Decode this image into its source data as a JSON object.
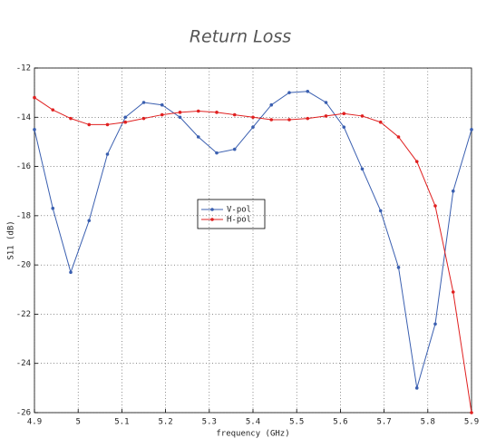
{
  "chart_data": {
    "type": "line",
    "title": "Return Loss",
    "xlabel": "frequency (GHz)",
    "ylabel": "S11 (dB)",
    "x": [
      4.9,
      4.942,
      4.983,
      5.025,
      5.067,
      5.108,
      5.15,
      5.192,
      5.233,
      5.275,
      5.317,
      5.358,
      5.4,
      5.442,
      5.483,
      5.525,
      5.567,
      5.608,
      5.65,
      5.692,
      5.733,
      5.775,
      5.817,
      5.858,
      5.9
    ],
    "series": [
      {
        "name": "V-pol",
        "color": "#3a5fb0",
        "values": [
          -14.5,
          -17.7,
          -20.3,
          -18.2,
          -15.5,
          -14.0,
          -13.4,
          -13.5,
          -14.0,
          -14.8,
          -15.45,
          -15.3,
          -14.4,
          -13.5,
          -13.0,
          -12.95,
          -13.4,
          -14.4,
          -16.1,
          -17.8,
          -20.1,
          -25.0,
          -22.4,
          -17.0,
          -14.5
        ]
      },
      {
        "name": "H-pol",
        "color": "#e02020",
        "values": [
          -13.2,
          -13.7,
          -14.05,
          -14.3,
          -14.3,
          -14.2,
          -14.05,
          -13.9,
          -13.8,
          -13.75,
          -13.8,
          -13.9,
          -14.0,
          -14.1,
          -14.1,
          -14.05,
          -13.95,
          -13.85,
          -13.95,
          -14.2,
          -14.8,
          -15.8,
          -17.6,
          -21.1,
          -26.0
        ]
      }
    ],
    "xlim": [
      4.9,
      5.9
    ],
    "xticks": [
      4.9,
      5,
      5.1,
      5.2,
      5.3,
      5.4,
      5.5,
      5.6,
      5.7,
      5.8,
      5.9
    ],
    "ylim": [
      -26,
      -12
    ],
    "yticks": [
      -26,
      -24,
      -22,
      -20,
      -18,
      -16,
      -14,
      -12
    ],
    "grid": true
  }
}
